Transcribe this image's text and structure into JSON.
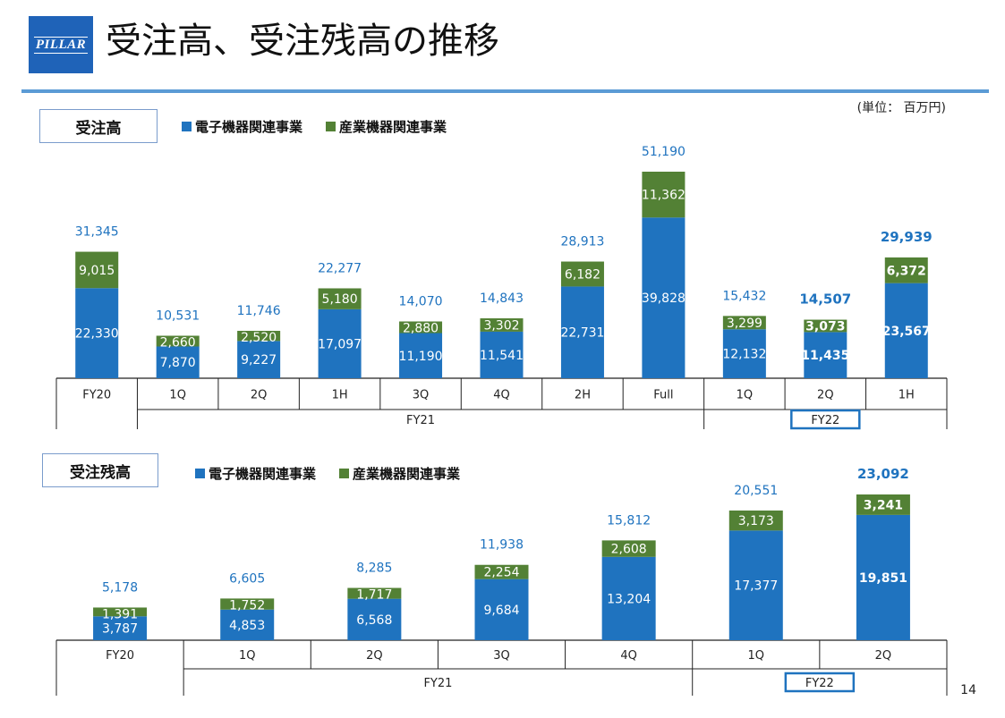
{
  "header": {
    "logo_text": "PILLAR",
    "title": "受注高、受注残高の推移",
    "unit": "(単位： 百万円)"
  },
  "legend": {
    "electronic": "電子機器関連事業",
    "industrial": "産業機器関連事業"
  },
  "colors": {
    "electronic": "#1f73bf",
    "industrial": "#538135",
    "total_label": "#1f73bf",
    "fy22_box": "#1f73bf"
  },
  "page_number": "14",
  "chart_data": [
    {
      "type": "bar",
      "stacked": true,
      "section_label": "受注高",
      "categories": [
        "FY20",
        "1Q",
        "2Q",
        "1H",
        "3Q",
        "4Q",
        "2H",
        "Full",
        "1Q",
        "2Q",
        "1H"
      ],
      "groups": [
        {
          "label": "",
          "span": 1
        },
        {
          "label": "FY21",
          "span": 7
        },
        {
          "label": "FY22",
          "span": 3,
          "boxed": true
        }
      ],
      "series": [
        {
          "name": "電子機器関連事業",
          "values": [
            22330,
            7870,
            9227,
            17097,
            11190,
            11541,
            22731,
            39828,
            12132,
            11435,
            23567
          ]
        },
        {
          "name": "産業機器関連事業",
          "values": [
            9015,
            2660,
            2520,
            5180,
            2880,
            3302,
            6182,
            11362,
            3299,
            3073,
            6372
          ]
        }
      ],
      "totals": [
        31345,
        10531,
        11746,
        22277,
        14070,
        14843,
        28913,
        51190,
        15432,
        14507,
        29939
      ],
      "emphasized": [
        false,
        false,
        false,
        false,
        false,
        false,
        false,
        false,
        false,
        true,
        true
      ],
      "ylim": [
        0,
        51190
      ]
    },
    {
      "type": "bar",
      "stacked": true,
      "section_label": "受注残高",
      "categories": [
        "FY20",
        "1Q",
        "2Q",
        "3Q",
        "4Q",
        "1Q",
        "2Q"
      ],
      "groups": [
        {
          "label": "",
          "span": 1
        },
        {
          "label": "FY21",
          "span": 4
        },
        {
          "label": "FY22",
          "span": 2,
          "boxed": true
        }
      ],
      "series": [
        {
          "name": "電子機器関連事業",
          "values": [
            3787,
            4853,
            6568,
            9684,
            13204,
            17377,
            19851
          ]
        },
        {
          "name": "産業機器関連事業",
          "values": [
            1391,
            1752,
            1717,
            2254,
            2608,
            3173,
            3241
          ]
        }
      ],
      "totals": [
        5178,
        6605,
        8285,
        11938,
        15812,
        20551,
        23092
      ],
      "emphasized": [
        false,
        false,
        false,
        false,
        false,
        false,
        true
      ],
      "ylim": [
        0,
        23092
      ]
    }
  ]
}
